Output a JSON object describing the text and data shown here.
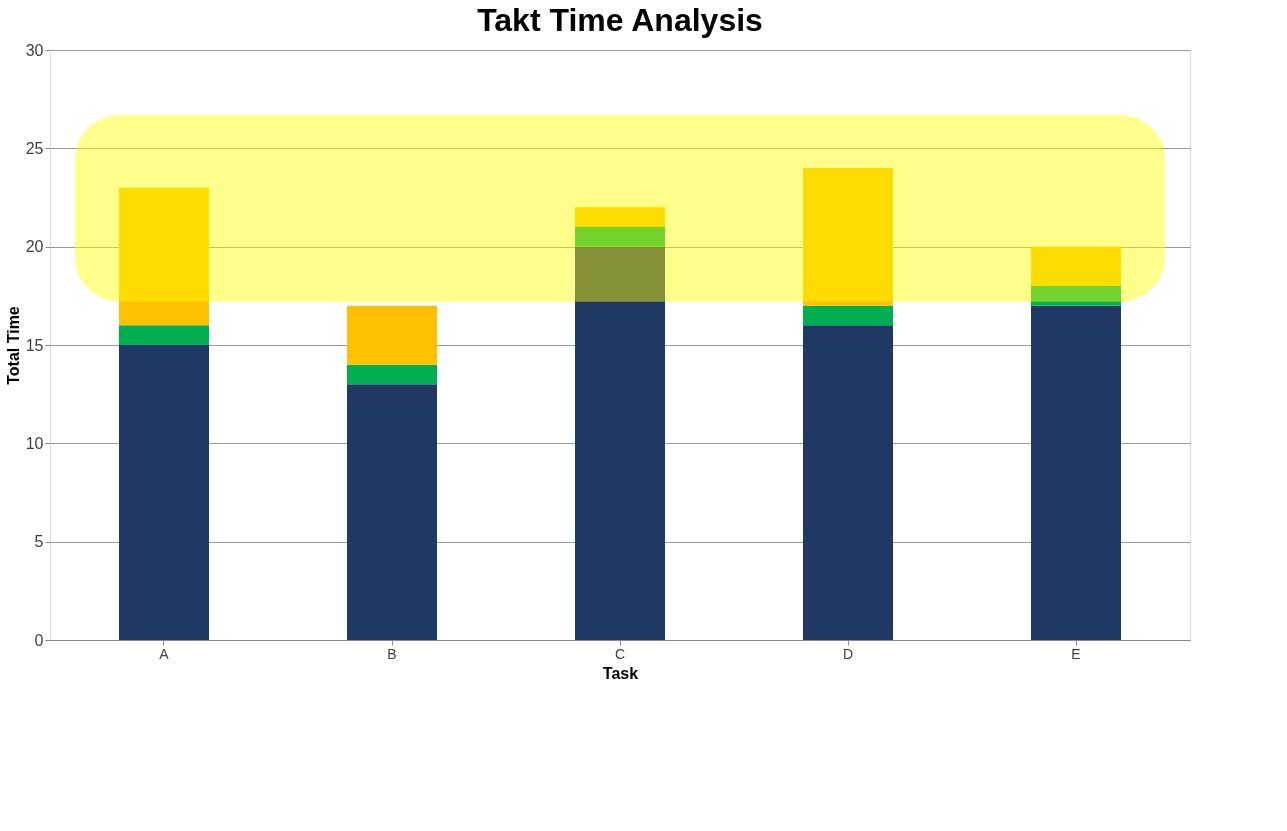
{
  "chart_data": {
    "type": "bar",
    "title": "Takt Time Analysis",
    "xlabel": "Task",
    "ylabel": "Total Time",
    "categories": [
      "A",
      "B",
      "C",
      "D",
      "E"
    ],
    "stacked": true,
    "series": [
      {
        "color": "#1f3864",
        "values": [
          15,
          13,
          20,
          16,
          17
        ]
      },
      {
        "color": "#00b050",
        "values": [
          1,
          1,
          1,
          1,
          1
        ]
      },
      {
        "color": "#ffc000",
        "values": [
          7,
          3,
          1,
          7,
          2
        ]
      }
    ],
    "ylim": [
      0,
      30
    ],
    "yticks": [
      0,
      5,
      10,
      15,
      20,
      25,
      30
    ],
    "grid": "y",
    "legend": false,
    "bands": [
      {
        "axis": "y",
        "from": 17.2,
        "to": 26.7,
        "color": "#ffff00"
      }
    ]
  }
}
